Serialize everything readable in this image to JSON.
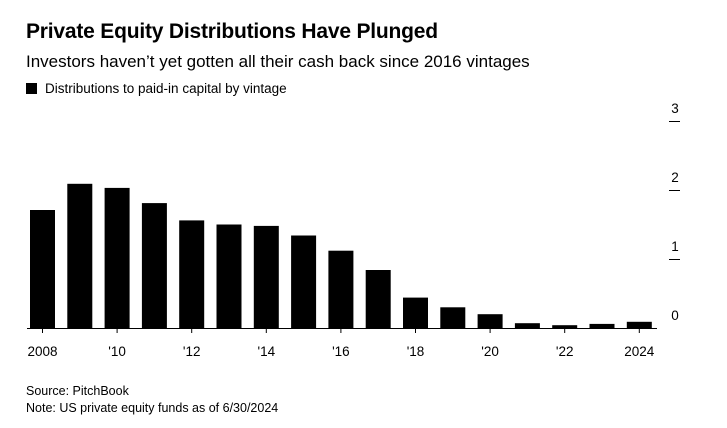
{
  "header": {
    "title": "Private Equity Distributions Have Plunged",
    "subtitle": "Investors haven’t yet gotten all their cash back since 2016 vintages"
  },
  "legend": {
    "label": "Distributions to paid-in capital by vintage",
    "color": "#000000"
  },
  "footer": {
    "source": "Source: PitchBook",
    "note": "Note: US private equity funds as of 6/30/2024"
  },
  "chart_data": {
    "type": "bar",
    "categories": [
      "2008",
      "2009",
      "2010",
      "2011",
      "2012",
      "2013",
      "2014",
      "2015",
      "2016",
      "2017",
      "2018",
      "2019",
      "2020",
      "2021",
      "2022",
      "2023",
      "2024"
    ],
    "series": [
      {
        "name": "Distributions to paid-in capital by vintage",
        "color": "#000000",
        "values": [
          1.71,
          2.09,
          2.03,
          1.81,
          1.56,
          1.5,
          1.48,
          1.34,
          1.12,
          0.84,
          0.44,
          0.3,
          0.2,
          0.07,
          0.04,
          0.06,
          0.09
        ]
      }
    ],
    "x_tick_labels": [
      "2008",
      "'10",
      "'12",
      "'14",
      "'16",
      "'18",
      "'20",
      "'22",
      "2024"
    ],
    "y_ticks": [
      "0",
      "1",
      "2",
      "3"
    ],
    "ylim": [
      0,
      3
    ],
    "y_axis_side": "right",
    "grid": false,
    "legend_position": "top-left",
    "xlabel": "",
    "ylabel": ""
  }
}
